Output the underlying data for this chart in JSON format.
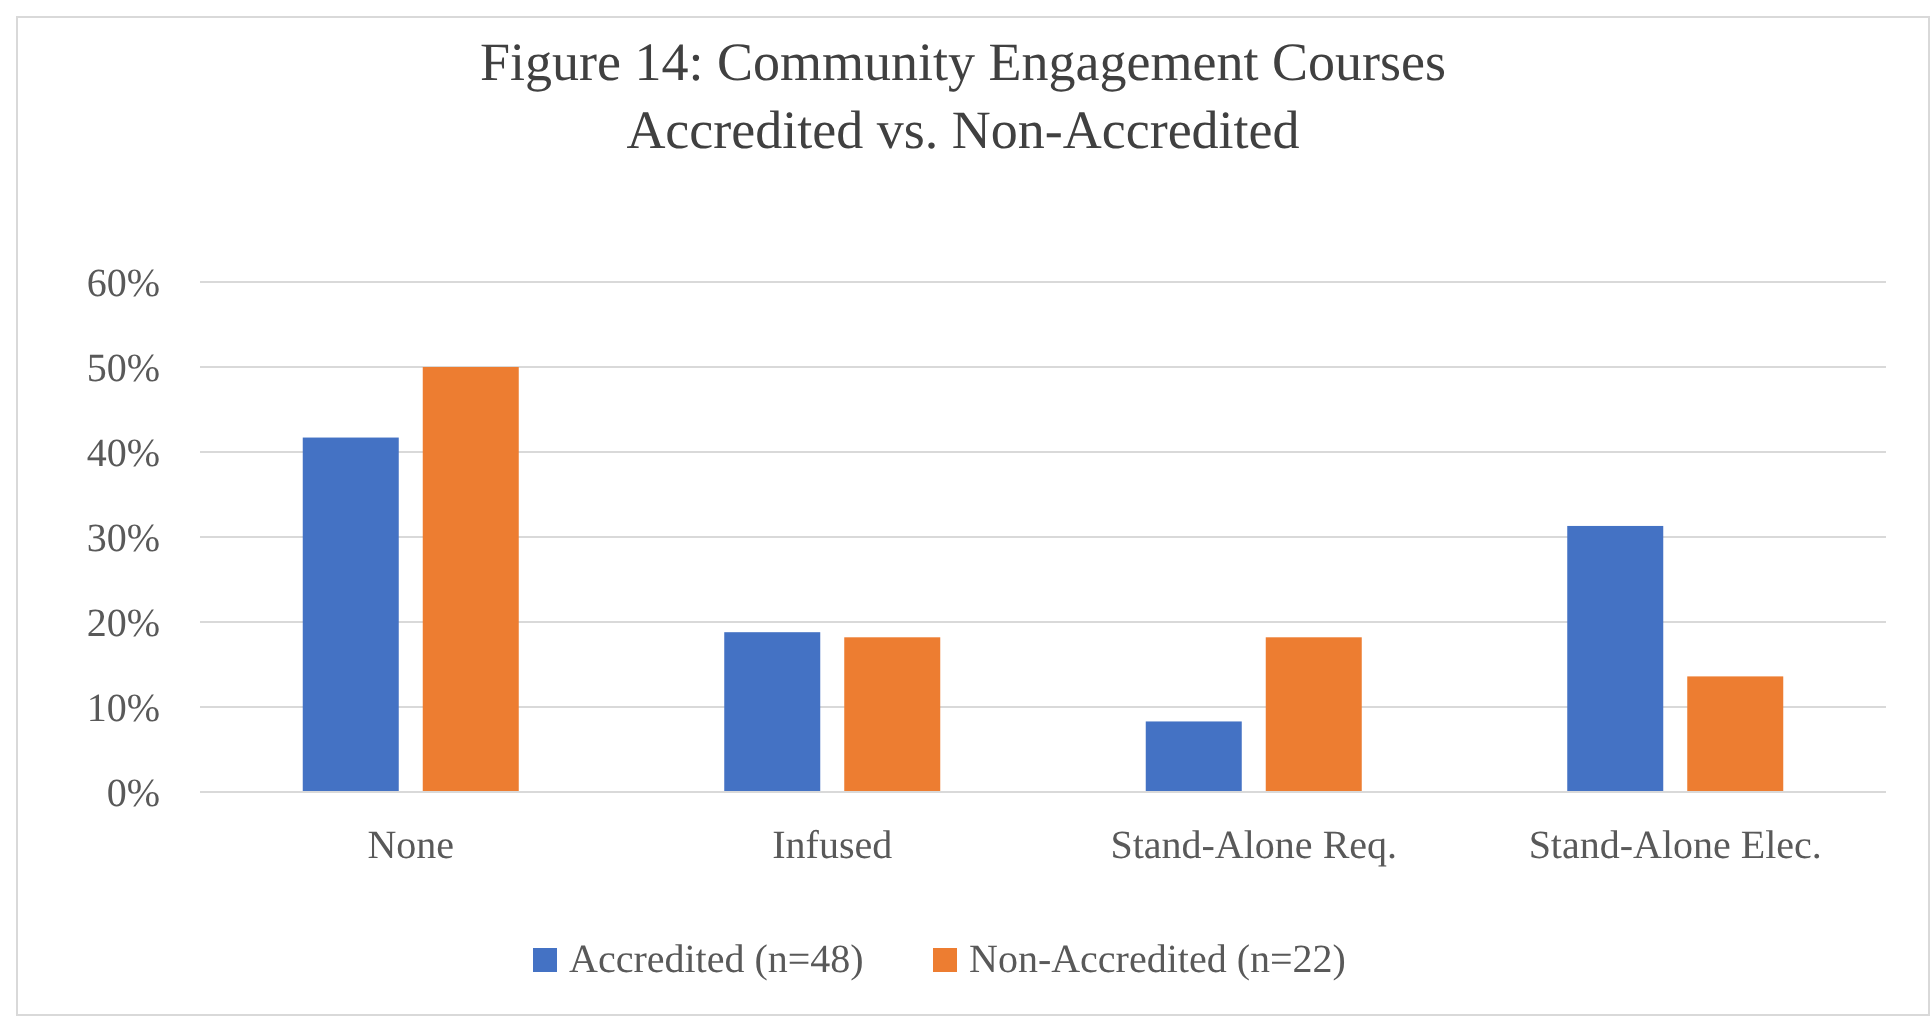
{
  "chart_data": {
    "type": "bar",
    "title": "Figure 14: Community Engagement Courses\nAccredited vs. Non-Accredited",
    "categories": [
      "None",
      "Infused",
      "Stand-Alone Req.",
      "Stand-Alone Elec."
    ],
    "series": [
      {
        "name": "Accredited (n=48)",
        "color": "#4472c4",
        "values": [
          41.7,
          18.8,
          8.3,
          31.3
        ]
      },
      {
        "name": "Non-Accredited (n=22)",
        "color": "#ed7d31",
        "values": [
          50,
          18.2,
          18.2,
          13.6
        ]
      }
    ],
    "ylim": [
      0,
      60
    ],
    "yticks": [
      {
        "value": 0,
        "label": "0%"
      },
      {
        "value": 10,
        "label": "10%"
      },
      {
        "value": 20,
        "label": "20%"
      },
      {
        "value": 30,
        "label": "30%"
      },
      {
        "value": 40,
        "label": "40%"
      },
      {
        "value": 50,
        "label": "50%"
      },
      {
        "value": 60,
        "label": "60%"
      }
    ],
    "grid": "y",
    "legend": "bottom"
  }
}
